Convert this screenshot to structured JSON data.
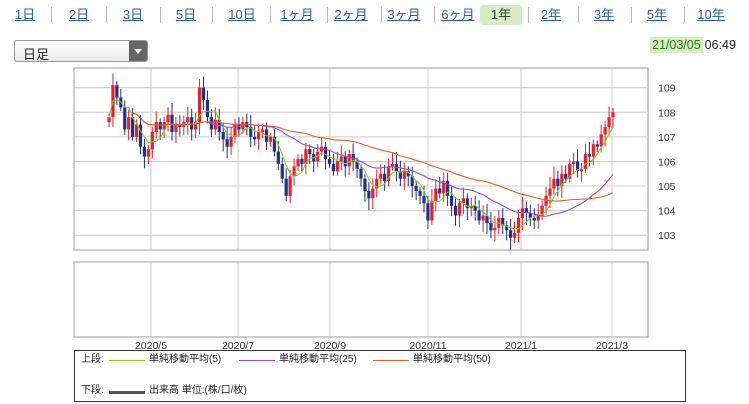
{
  "tabs": [
    {
      "label": "1日",
      "active": false
    },
    {
      "label": "2日",
      "active": false
    },
    {
      "label": "3日",
      "active": false
    },
    {
      "label": "5日",
      "active": false
    },
    {
      "label": "10日",
      "active": false
    },
    {
      "label": "1ヶ月",
      "active": false
    },
    {
      "label": "2ヶ月",
      "active": false
    },
    {
      "label": "3ヶ月",
      "active": false
    },
    {
      "label": "6ヶ月",
      "active": false
    },
    {
      "label": "1年",
      "active": true
    },
    {
      "label": "2年",
      "active": false
    },
    {
      "label": "3年",
      "active": false
    },
    {
      "label": "5年",
      "active": false
    },
    {
      "label": "10年",
      "active": false
    }
  ],
  "period_select": {
    "value": "日足"
  },
  "timestamp": {
    "date": "21/03/05",
    "time": "06:49"
  },
  "legend": {
    "upper_label": "上段:",
    "lower_label": "下段:",
    "items": [
      {
        "name": "単純移動平均(5)",
        "color": "#8fc31f"
      },
      {
        "name": "単純移動平均(25)",
        "color": "#9b4bd0"
      },
      {
        "name": "単純移動平均(50)",
        "color": "#e0622a"
      }
    ],
    "volume": {
      "name": "出来高 単位:(株/口/枚)",
      "color": "#555555"
    }
  },
  "colors": {
    "up": "#e8202a",
    "down": "#1f2f8c",
    "ma5": "#8fc31f",
    "ma25": "#9b4bd0",
    "ma50": "#e0622a"
  },
  "chart_data": {
    "type": "candlestick",
    "x_ticks": [
      "2020/5",
      "2020/7",
      "2020/9",
      "2020/11",
      "2021/1",
      "2021/3"
    ],
    "y_ticks": [
      103,
      104,
      105,
      106,
      107,
      108,
      109
    ],
    "ylim": [
      102.4,
      109.8
    ],
    "close_series": [
      107.8,
      109.1,
      108.6,
      108.2,
      107.3,
      107.8,
      107.0,
      107.5,
      106.6,
      106.2,
      106.5,
      107.2,
      107.6,
      107.3,
      107.6,
      107.9,
      107.2,
      107.5,
      107.4,
      107.6,
      107.8,
      107.3,
      107.6,
      109.0,
      108.5,
      107.8,
      107.3,
      107.7,
      107.2,
      106.9,
      106.6,
      107.0,
      107.5,
      107.3,
      107.6,
      107.4,
      107.0,
      106.9,
      107.2,
      107.3,
      106.8,
      107.0,
      106.4,
      105.9,
      105.3,
      104.6,
      105.4,
      105.8,
      106.1,
      105.9,
      106.5,
      106.3,
      106.0,
      106.4,
      106.6,
      106.1,
      105.9,
      105.6,
      106.0,
      106.2,
      105.8,
      106.3,
      106.0,
      105.7,
      105.3,
      104.8,
      104.5,
      104.9,
      105.3,
      105.5,
      105.2,
      105.8,
      105.9,
      105.6,
      105.3,
      105.6,
      105.4,
      105.0,
      104.8,
      104.6,
      104.3,
      103.6,
      104.4,
      104.9,
      104.7,
      105.2,
      104.6,
      104.2,
      103.8,
      104.3,
      104.5,
      104.1,
      104.2,
      104.0,
      103.6,
      103.8,
      103.5,
      103.2,
      103.3,
      103.7,
      103.4,
      103.2,
      102.9,
      103.1,
      103.7,
      104.1,
      103.9,
      103.7,
      103.6,
      103.8,
      104.2,
      104.6,
      104.9,
      105.3,
      105.0,
      105.5,
      105.3,
      105.9,
      106.0,
      105.6,
      105.7,
      106.3,
      106.2,
      106.7,
      106.6,
      107.1,
      107.4,
      107.8,
      108.0
    ]
  }
}
